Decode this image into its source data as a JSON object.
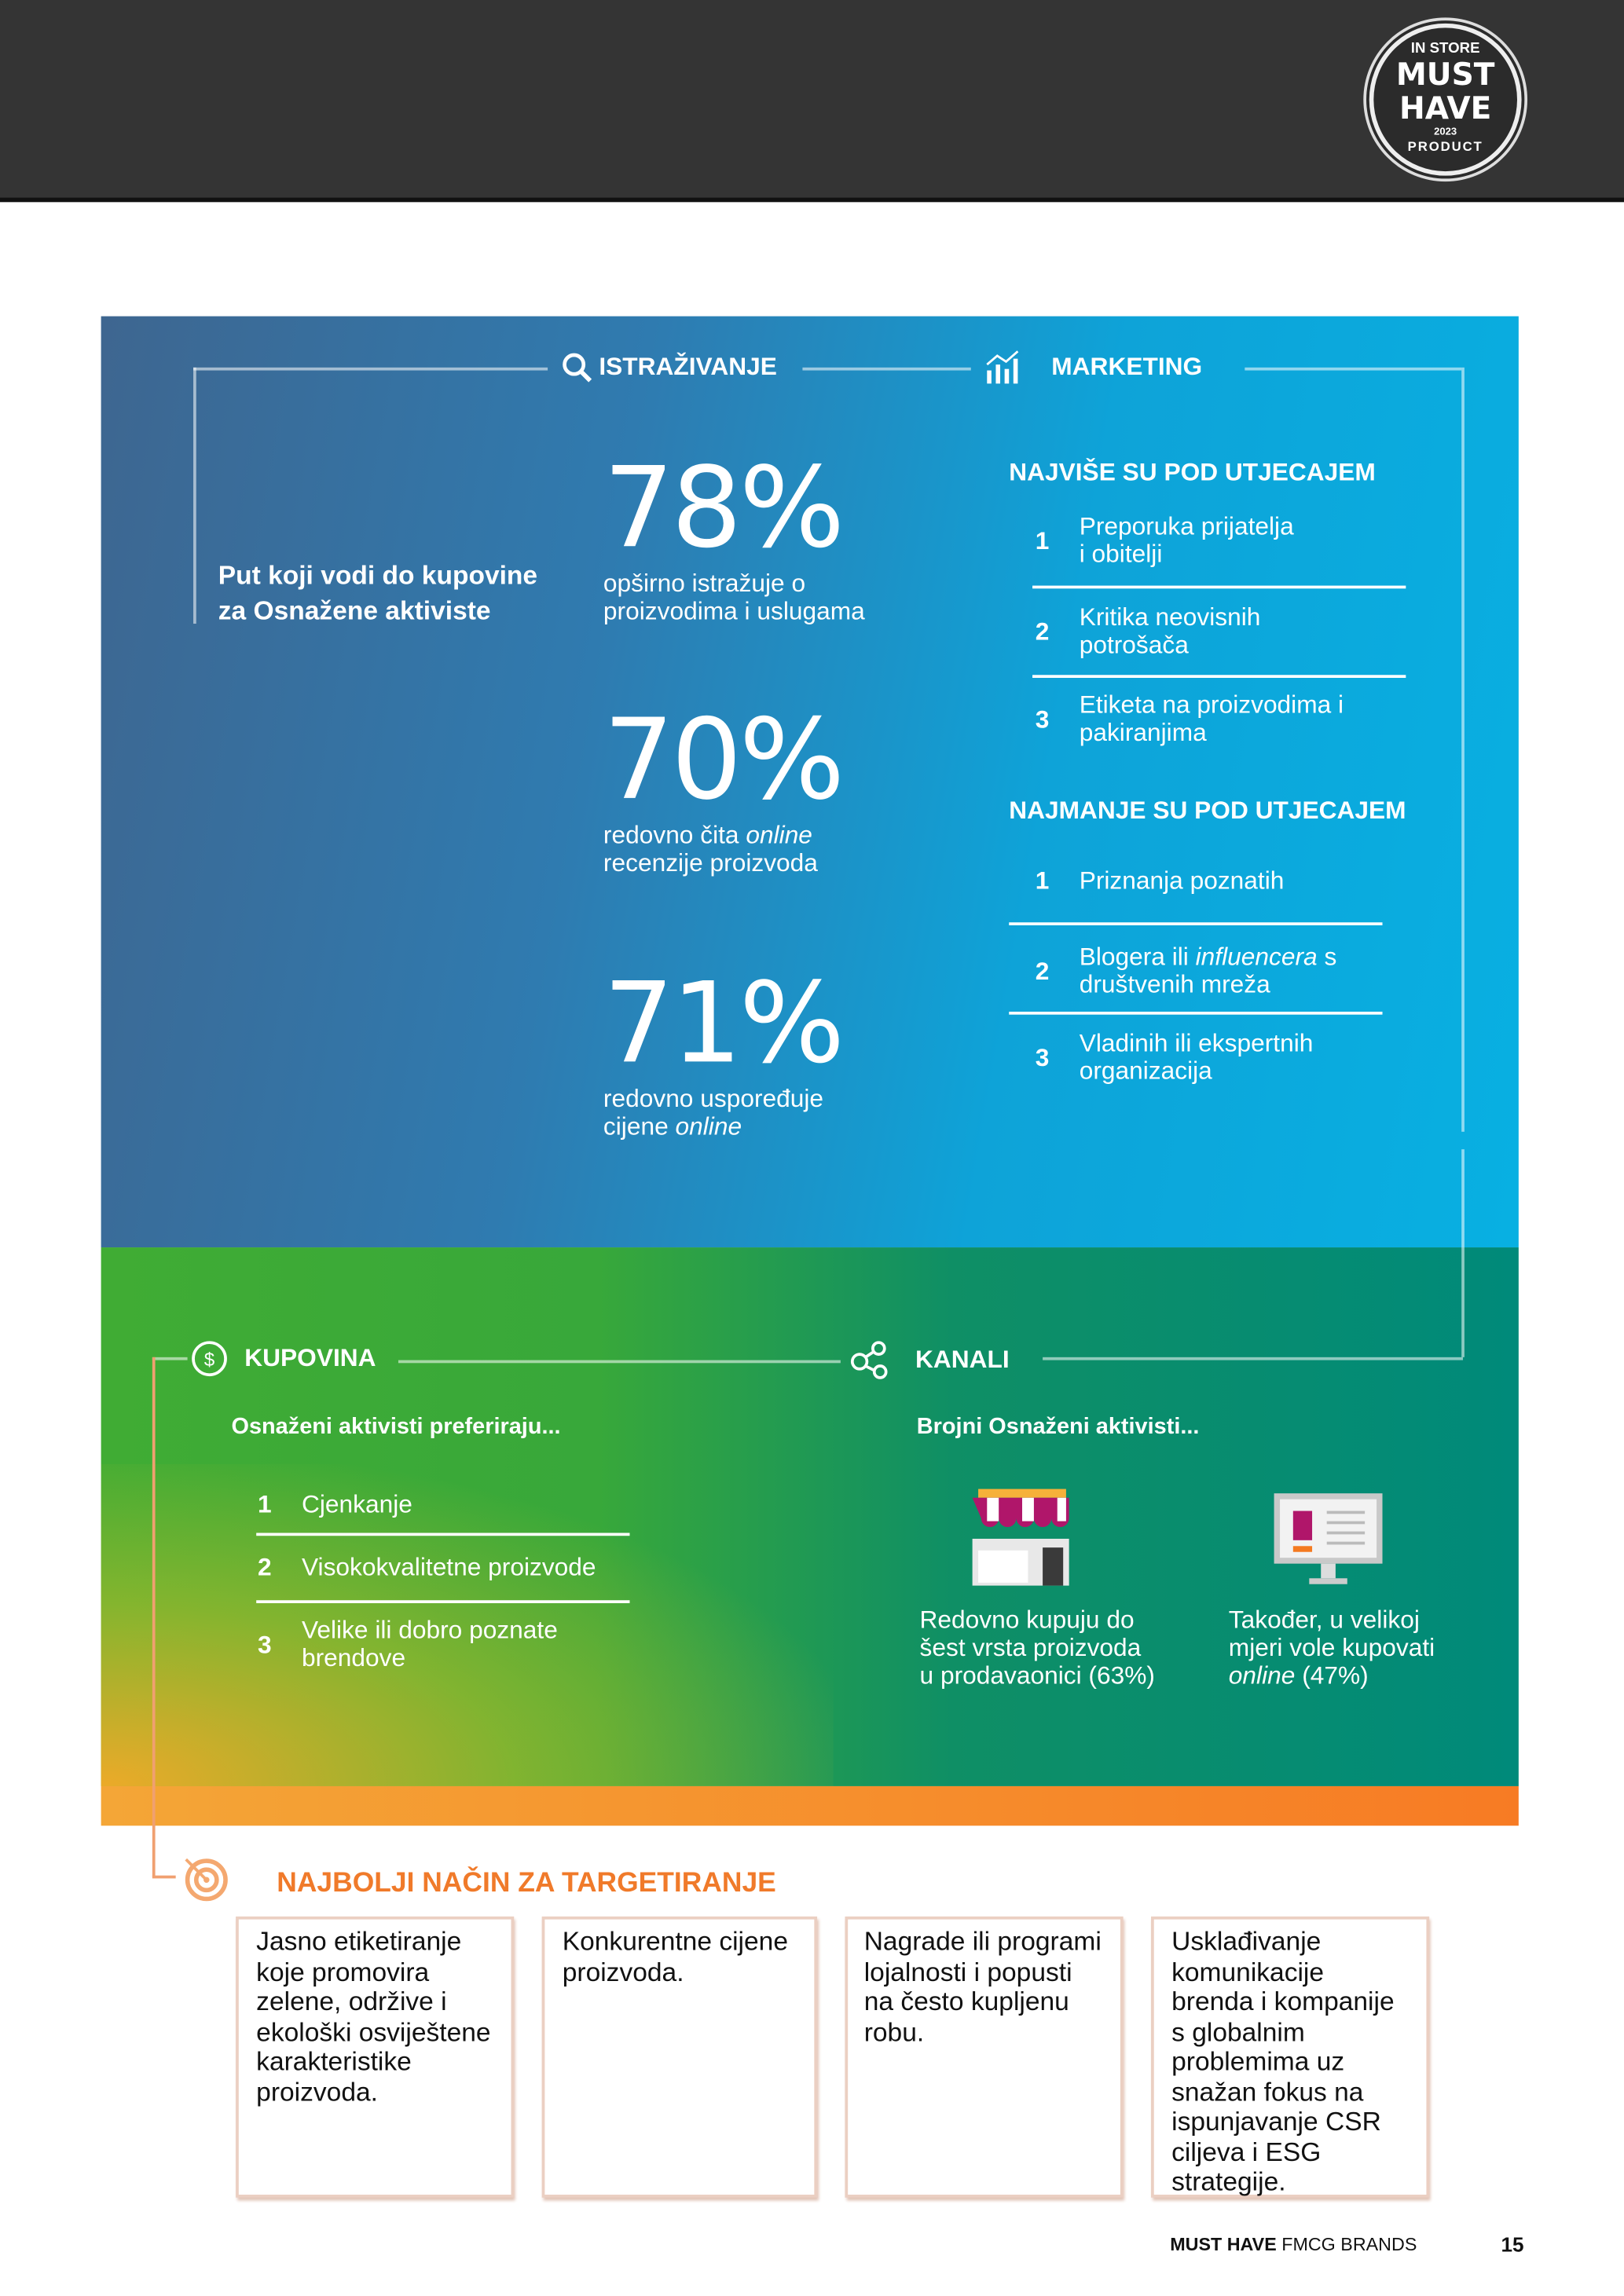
{
  "badge": {
    "brand": "IN STORE",
    "line1": "MUST",
    "line2": "HAVE",
    "year": "2023",
    "line3": "PRODUCT"
  },
  "flow": {
    "research": "ISTRAŽIVANJE",
    "marketing": "MARKETING",
    "purchase": "KUPOVINA",
    "channels": "KANALI",
    "targeting": "NAJBOLJI NAČIN ZA TARGETIRANJE"
  },
  "intro": {
    "line1": "Put koji vodi do kupovine",
    "line2": "za Osnažene aktiviste"
  },
  "stats": [
    {
      "value": "78%",
      "line1": "opširno istražuje o",
      "line2": "proizvodima i uslugama"
    },
    {
      "value": "70%",
      "line1a": "redovno čita ",
      "line1b": "online",
      "line2": "recenzije proizvoda"
    },
    {
      "value": "71%",
      "line1": "redovno uspoređuje",
      "line2a": "cijene ",
      "line2b": "online"
    }
  ],
  "most": {
    "title": "NAJVIŠE SU POD UTJECAJEM",
    "items": [
      {
        "n": "1",
        "l1": "Preporuka prijatelja",
        "l2": "i obitelji"
      },
      {
        "n": "2",
        "l1": "Kritika neovisnih",
        "l2": "potrošača"
      },
      {
        "n": "3",
        "l1": "Etiketa na proizvodima i",
        "l2": "pakiranjima"
      }
    ]
  },
  "least": {
    "title": "NAJMANJE SU POD UTJECAJEM",
    "items": [
      {
        "n": "1",
        "l1": "Priznanja poznatih"
      },
      {
        "n": "2",
        "l1a": "Blogera ili ",
        "l1b": "influencera",
        "l1c": " s",
        "l2": "društvenih mreža"
      },
      {
        "n": "3",
        "l1": "Vladinih ili ekspertnih",
        "l2": "organizacija"
      }
    ]
  },
  "prefer": {
    "title": "Osnaženi aktivisti preferiraju...",
    "items": [
      {
        "n": "1",
        "l1": "Cjenkanje"
      },
      {
        "n": "2",
        "l1": "Visokokvalitetne proizvode"
      },
      {
        "n": "3",
        "l1": "Velike ili dobro poznate",
        "l2": "brendove"
      }
    ]
  },
  "channels": {
    "title": "Brojni Osnaženi aktivisti...",
    "store": {
      "l1": "Redovno kupuju do",
      "l2": "šest vrsta proizvoda",
      "l3": "u prodavaonici (63%)"
    },
    "online": {
      "l1": "Također, u velikoj",
      "l2": "mjeri vole kupovati",
      "l3a": "online",
      "l3b": " (47%)"
    }
  },
  "targets": [
    "Jasno etiketiranje koje promovira zelene, održive i ekološki osviještene karakteristike proizvoda.",
    "Konkurentne cijene proizvoda.",
    "Nagrade ili programi lojalnosti i popusti na često kupljenu robu.",
    "Usklađivanje komunikacije brenda i kompanije s globalnim problemima uz snažan fokus na ispunjavanje CSR ciljeva i ESG strategije."
  ],
  "footer": {
    "bold": "MUST HAVE",
    "rest": " FMCG BRANDS",
    "page": "15"
  },
  "colors": {
    "header": "#343434",
    "orange": "#f07a2a",
    "blue": "#08b0e2",
    "green": "#40ac34",
    "teal": "#008a7a"
  }
}
